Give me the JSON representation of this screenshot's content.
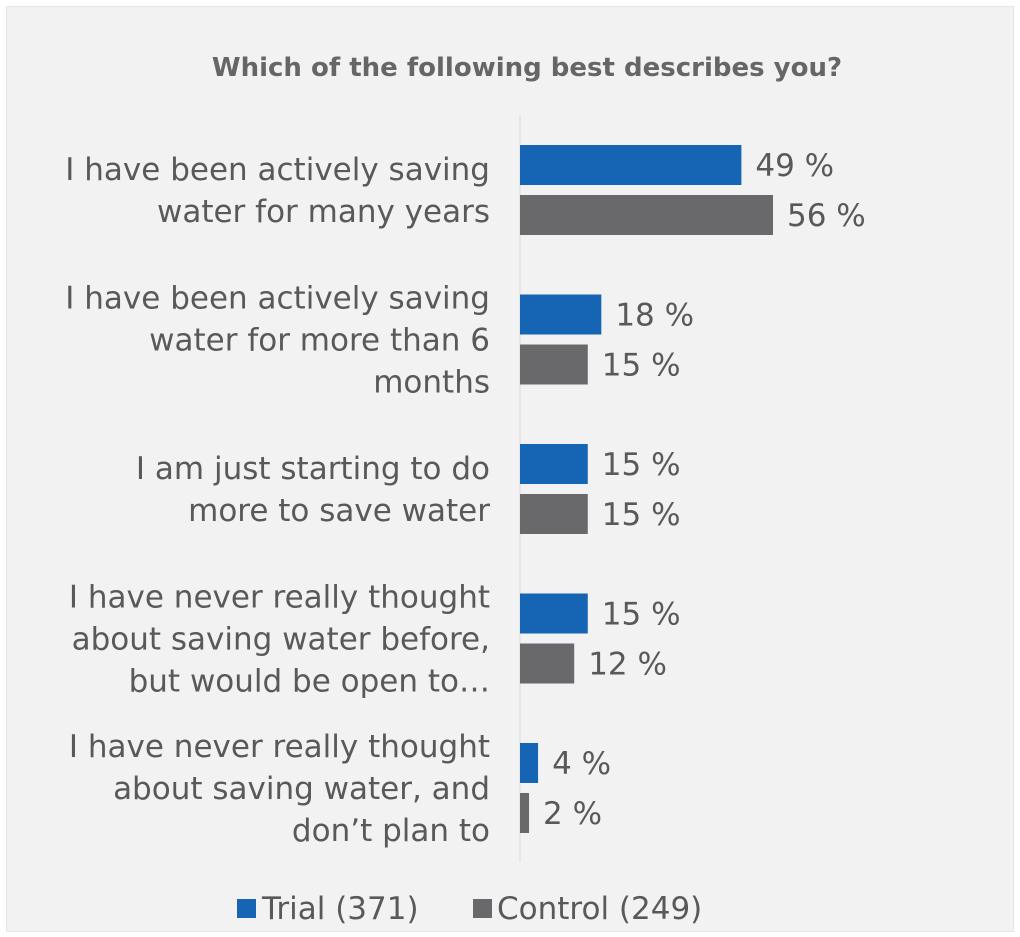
{
  "chart_data": {
    "type": "bar",
    "orientation": "horizontal",
    "title": "Which of the following best describes you?",
    "categories": [
      [
        "I have been actively saving",
        "water for many years"
      ],
      [
        "I have been actively saving",
        "water for more than 6",
        "months"
      ],
      [
        "I am just starting to do",
        "more to save water"
      ],
      [
        "I have never really thought",
        "about saving water before,",
        "but would be open to…"
      ],
      [
        "I have never really thought",
        "about saving water, and",
        "don’t plan to"
      ]
    ],
    "series": [
      {
        "name": "Trial (371)",
        "values": [
          49,
          18,
          15,
          15,
          4
        ],
        "labels": [
          "49 %",
          "18 %",
          "15 %",
          "15 %",
          "4 %"
        ],
        "color": "#1565b4"
      },
      {
        "name": "Control (249)",
        "values": [
          56,
          15,
          15,
          12,
          2
        ],
        "labels": [
          "56 %",
          "15 %",
          "15 %",
          "12 %",
          "2 %"
        ],
        "color": "#69696c"
      }
    ],
    "xlim": [
      0,
      100
    ],
    "grid": false,
    "legend_position": "bottom"
  }
}
